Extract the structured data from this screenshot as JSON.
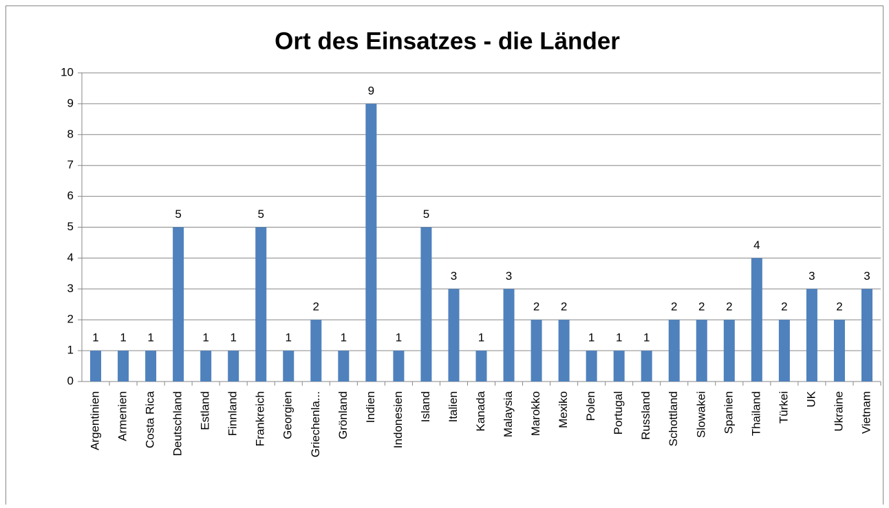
{
  "chart_data": {
    "type": "bar",
    "title": "Ort des Einsatzes - die Länder",
    "categories": [
      "Argentinien",
      "Armenien",
      "Costa Rica",
      "Deutschland",
      "Estland",
      "Finnland",
      "Frankreich",
      "Georgien",
      "Griechenla...",
      "Grönland",
      "Indien",
      "Indonesien",
      "Island",
      "Italien",
      "Kanada",
      "Malaysia",
      "Marokko",
      "Mexiko",
      "Polen",
      "Portugal",
      "Russland",
      "Schottland",
      "Slowakei",
      "Spanien",
      "Thailand",
      "Türkei",
      "UK",
      "Ukraine",
      "Vietnam"
    ],
    "values": [
      1,
      1,
      1,
      5,
      1,
      1,
      5,
      1,
      2,
      1,
      9,
      1,
      5,
      3,
      1,
      3,
      2,
      2,
      1,
      1,
      1,
      2,
      2,
      2,
      4,
      2,
      3,
      2,
      3
    ],
    "color": "#4f81bd",
    "ylim": [
      0,
      10
    ],
    "yticks": [
      0,
      1,
      2,
      3,
      4,
      5,
      6,
      7,
      8,
      9,
      10
    ],
    "grid": true,
    "data_labels": true
  }
}
